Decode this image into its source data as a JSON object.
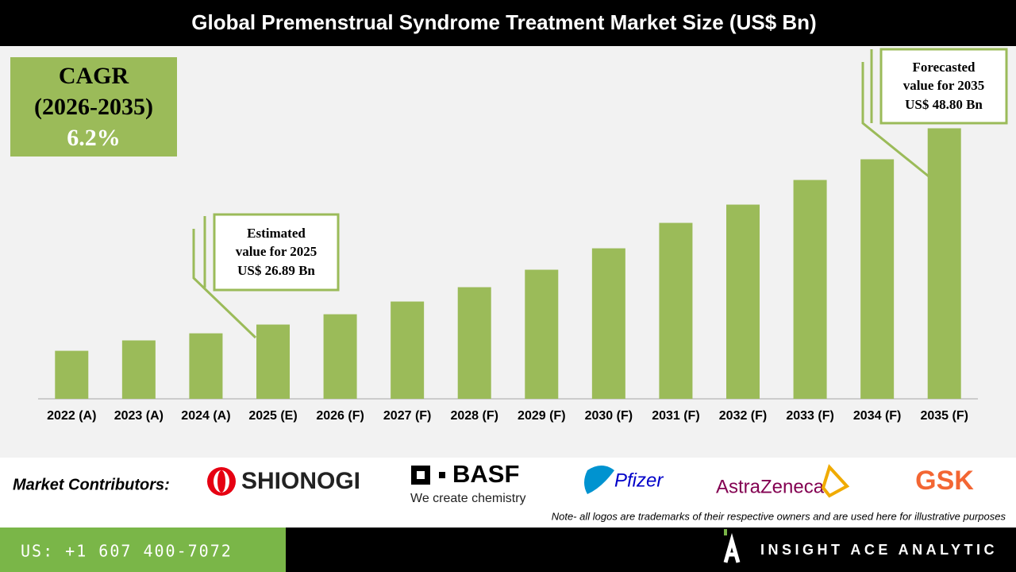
{
  "header": {
    "title": "Global Premenstrual Syndrome Treatment Market Size (US$ Bn)"
  },
  "chart_data": {
    "type": "bar",
    "categories": [
      "2022 (A)",
      "2023 (A)",
      "2024 (A)",
      "2025 (E)",
      "2026 (F)",
      "2027 (F)",
      "2028 (F)",
      "2029 (F)",
      "2030 (F)",
      "2031 (F)",
      "2032 (F)",
      "2033 (F)",
      "2034 (F)",
      "2035 (F)"
    ],
    "values": [
      23.96,
      25.12,
      25.91,
      26.89,
      28.04,
      29.46,
      31.06,
      33.01,
      35.4,
      38.24,
      40.28,
      43.03,
      45.34,
      48.8
    ],
    "color": "#9bbb59",
    "ylim": [
      18.6,
      57.8
    ]
  },
  "cagr": {
    "line1": "CAGR",
    "line2": "(2026-2035)",
    "line3": "6.2%"
  },
  "annotations": [
    {
      "lines": [
        "Estimated",
        "value for 2025",
        "US$ 26.89 Bn"
      ]
    },
    {
      "lines": [
        "Forecasted",
        "value for 2035",
        "US$ 48.80 Bn"
      ]
    }
  ],
  "contributors": {
    "label": "Market Contributors:",
    "logos": [
      "SHIONOGI",
      "BASF",
      "We create chemistry",
      "Pfizer",
      "AstraZeneca",
      "GSK"
    ],
    "note": "Note- all logos are trademarks of their respective owners and are used here for illustrative purposes"
  },
  "footer": {
    "phone": "US: +1 607 400-7072",
    "brand": "INSIGHT ACE ANALYTIC"
  }
}
